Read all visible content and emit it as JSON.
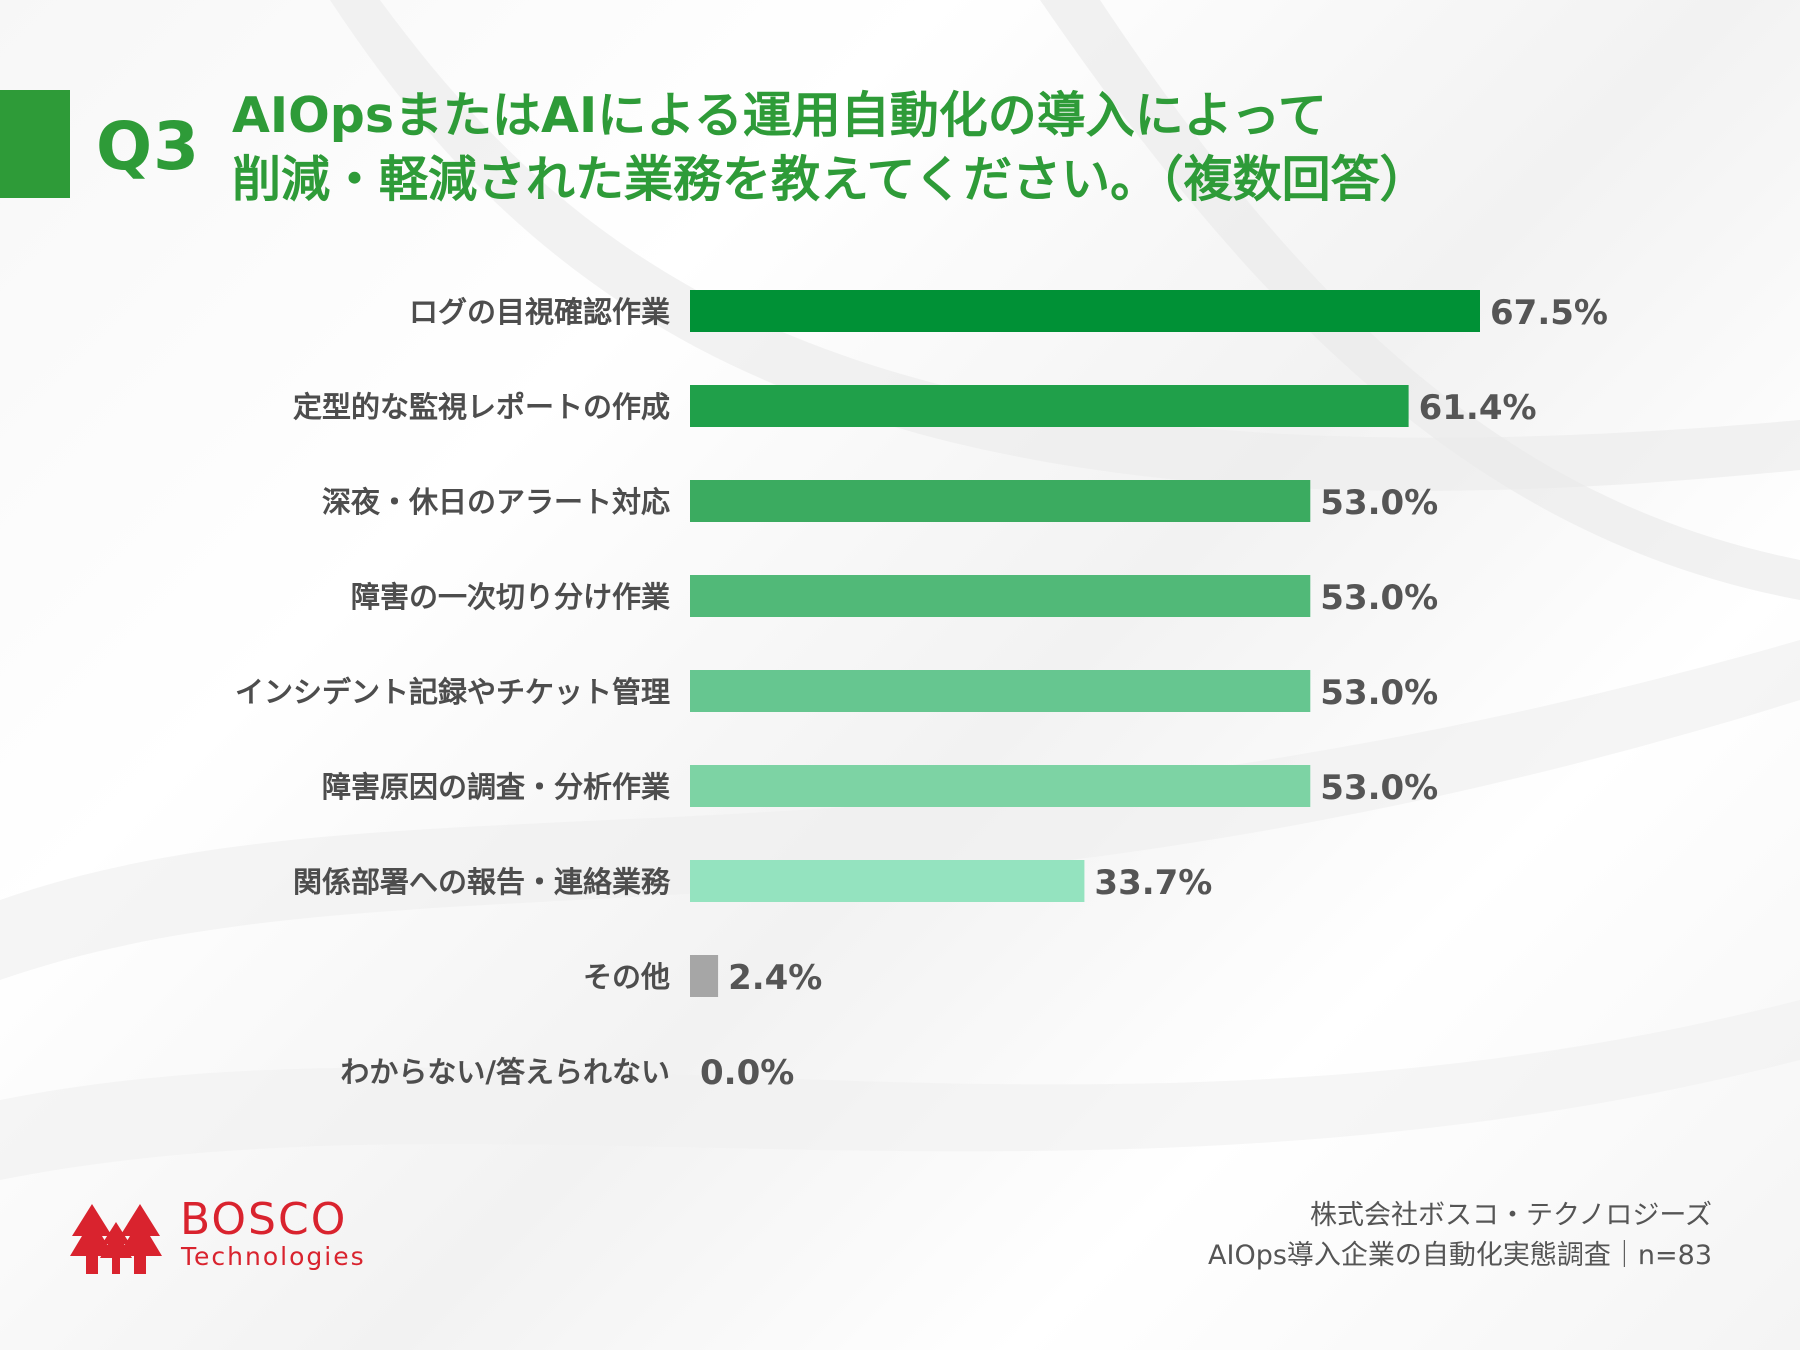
{
  "question": {
    "number": "Q3",
    "title_line1": "AIOpsまたはAIによる運用自動化の導入によって",
    "title_line2": "削減・軽減された業務を教えてください。（複数回答）"
  },
  "chart_data": {
    "type": "bar",
    "orientation": "horizontal",
    "title": "",
    "xlabel": "",
    "ylabel": "",
    "xlim": [
      0,
      100
    ],
    "grid": false,
    "value_suffix": "%",
    "categories": [
      "ログの目視確認作業",
      "定型的な監視レポートの作成",
      "深夜・休日のアラート対応",
      "障害の一次切り分け作業",
      "インシデント記録やチケット管理",
      "障害原因の調査・分析作業",
      "関係部署への報告・連絡業務",
      "その他",
      "わからない/答えられない"
    ],
    "values": [
      67.5,
      61.4,
      53.0,
      53.0,
      53.0,
      53.0,
      33.7,
      2.4,
      0.0
    ],
    "value_labels": [
      "67.5%",
      "61.4%",
      "53.0%",
      "53.0%",
      "53.0%",
      "53.0%",
      "33.7%",
      "2.4%",
      "0.0%"
    ],
    "colors": [
      "#009136",
      "#20a04a",
      "#3bab60",
      "#51b978",
      "#66c690",
      "#7dd3a4",
      "#94e3bf",
      "#a6a6a6",
      "#a6a6a6"
    ]
  },
  "logo": {
    "name": "BOSCO",
    "sub": "Technologies",
    "color": "#d9232e"
  },
  "footer": {
    "company": "株式会社ボスコ・テクノロジーズ",
    "survey": "AIOps導入企業の自動化実態調査｜n=83"
  },
  "colors": {
    "accent": "#2e9b38",
    "label_text": "#4d4d4d"
  }
}
